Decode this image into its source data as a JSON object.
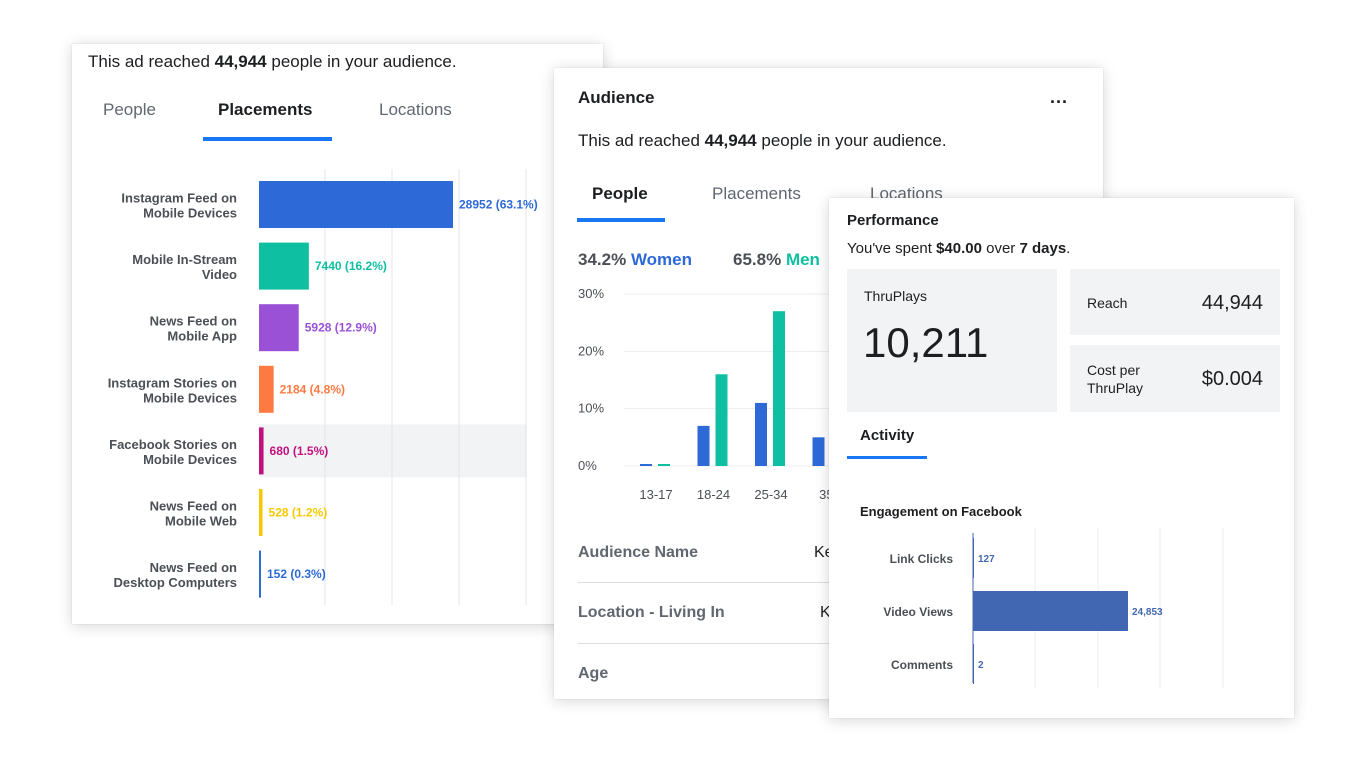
{
  "placements_card": {
    "reach_prefix": "This ad reached ",
    "reach_count": "44,944",
    "reach_suffix": " people in your audience.",
    "tabs": [
      "People",
      "Placements",
      "Locations"
    ],
    "active_tab": "Placements"
  },
  "audience_card": {
    "title": "Audience",
    "more_icon": "ellipsis-icon",
    "more_label": "...",
    "reach_prefix": "This ad reached ",
    "reach_count": "44,944",
    "reach_suffix": " people in your audience.",
    "tabs": [
      "People",
      "Placements",
      "Locations"
    ],
    "active_tab": "People",
    "women_pct": "34.2%",
    "women_label": "Women",
    "men_pct": "65.8%",
    "men_label": "Men",
    "info_rows": [
      {
        "label": "Audience Name",
        "value": "Ke"
      },
      {
        "label": "Location - Living In",
        "value": "K"
      },
      {
        "label": "Age",
        "value": ""
      }
    ]
  },
  "performance_card": {
    "title": "Performance",
    "spent_prefix": "You've spent ",
    "spent_amount": "$40.00",
    "spent_mid": " over ",
    "spent_days": "7 days",
    "spent_end": ".",
    "thruplays_label": "ThruPlays",
    "thruplays_value": "10,211",
    "reach_label": "Reach",
    "reach_value": "44,944",
    "cost_label_1": "Cost per",
    "cost_label_2": "ThruPlay",
    "cost_value": "$0.004",
    "activity_tab": "Activity",
    "engagement_title": "Engagement on Facebook"
  },
  "colors": {
    "accent": "#1877f2",
    "women": "#2d6ad8",
    "men": "#0fbfa1",
    "engagement_bar": "#4267b2"
  },
  "chart_data": [
    {
      "type": "bar",
      "orientation": "horizontal",
      "categories": [
        "Instagram Feed on Mobile Devices",
        "Mobile In-Stream Video",
        "News Feed on Mobile App",
        "Instagram Stories on Mobile Devices",
        "Facebook Stories on Mobile Devices",
        "News Feed on Mobile Web",
        "News Feed on Desktop Computers"
      ],
      "category_lines": [
        [
          "Instagram Feed on",
          "Mobile Devices"
        ],
        [
          "Mobile In-Stream",
          "Video"
        ],
        [
          "News Feed on",
          "Mobile App"
        ],
        [
          "Instagram Stories on",
          "Mobile Devices"
        ],
        [
          "Facebook Stories on",
          "Mobile Devices"
        ],
        [
          "News Feed on",
          "Mobile Web"
        ],
        [
          "News Feed on",
          "Desktop Computers"
        ]
      ],
      "values": [
        28952,
        7440,
        5928,
        2184,
        680,
        528,
        152
      ],
      "data_labels": [
        "28952 (63.1%)",
        "7440 (16.2%)",
        "5928 (12.9%)",
        "2184 (4.8%)",
        "680 (1.5%)",
        "528 (1.2%)",
        "152 (0.3%)"
      ],
      "colors": [
        "#2d6ad8",
        "#0fbfa1",
        "#9b51d6",
        "#ff7a40",
        "#c2127f",
        "#f7c800",
        "#2d6ad8"
      ],
      "highlighted_category": "Facebook Stories on Mobile Devices",
      "grid": true
    },
    {
      "type": "bar",
      "categories": [
        "13-17",
        "18-24",
        "25-34",
        "35-"
      ],
      "series": [
        {
          "name": "Women",
          "values": [
            0.2,
            7,
            11,
            5
          ]
        },
        {
          "name": "Men",
          "values": [
            0.2,
            16,
            27,
            null
          ]
        }
      ],
      "y_ticks": [
        "0%",
        "10%",
        "20%",
        "30%"
      ],
      "ylim": [
        0,
        30
      ],
      "grid": true
    },
    {
      "type": "bar",
      "orientation": "horizontal",
      "title": "Engagement on Facebook",
      "categories": [
        "Link Clicks",
        "Video Views",
        "Comments"
      ],
      "values": [
        127,
        24853,
        2
      ],
      "data_labels": [
        "127",
        "24,853",
        "2"
      ],
      "grid": true
    }
  ]
}
